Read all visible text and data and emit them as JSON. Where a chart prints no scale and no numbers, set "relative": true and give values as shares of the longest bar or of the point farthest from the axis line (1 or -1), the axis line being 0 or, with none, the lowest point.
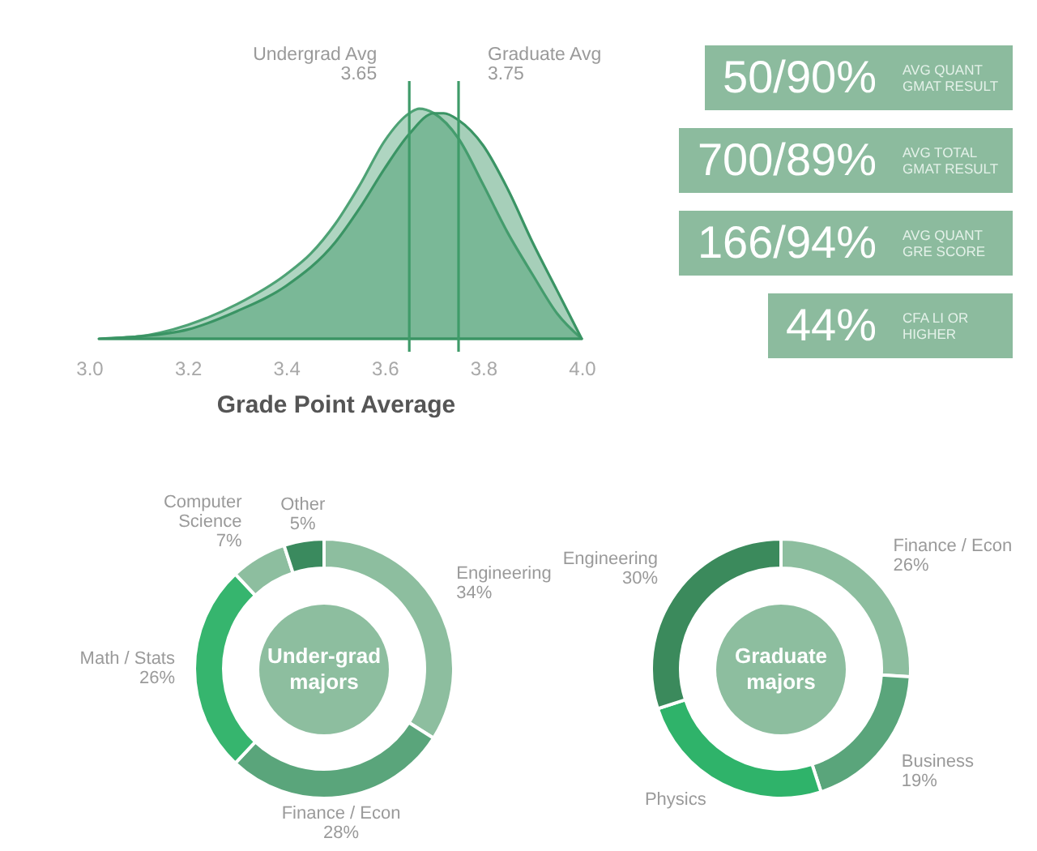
{
  "chart_data": [
    {
      "type": "area",
      "relative": true,
      "xlabel": "Grade Point Average",
      "xlim": [
        3,
        4
      ],
      "xticks": [
        {
          "value": 3,
          "label": "3.0"
        },
        3.2,
        3.4,
        3.6,
        3.8,
        {
          "value": 4,
          "label": "4.0"
        }
      ],
      "series": [
        {
          "color": "#4ea275",
          "x": [
            3.02,
            3.1,
            3.2,
            3.3,
            3.4,
            3.45,
            3.5,
            3.55,
            3.6,
            3.65,
            3.67,
            3.7,
            3.75,
            3.8,
            3.85,
            3.9,
            3.95,
            4.0
          ],
          "values": [
            0,
            0.01,
            0.06,
            0.15,
            0.28,
            0.37,
            0.5,
            0.67,
            0.86,
            0.98,
            1,
            0.98,
            0.87,
            0.67,
            0.46,
            0.28,
            0.11,
            0
          ]
        },
        {
          "color": "#3a9464",
          "x": [
            3.02,
            3.1,
            3.2,
            3.3,
            3.4,
            3.5,
            3.55,
            3.6,
            3.65,
            3.7,
            3.72,
            3.75,
            3.8,
            3.85,
            3.9,
            3.95,
            4.0
          ],
          "values": [
            0,
            0.01,
            0.04,
            0.12,
            0.23,
            0.42,
            0.57,
            0.74,
            0.89,
            0.98,
            0.98,
            0.95,
            0.84,
            0.65,
            0.42,
            0.21,
            0
          ]
        }
      ],
      "ref_lines": [
        {
          "axis": "x",
          "value": 3.65,
          "label": "Undergrad Avg 3.65",
          "color": "#3f9b69"
        },
        {
          "axis": "x",
          "value": 3.75,
          "label": "Graduate Avg 3.75",
          "color": "#3f9b69"
        }
      ]
    },
    {
      "type": "other",
      "annotations": [
        "50/90%",
        "AVG QUANT GMAT RESULT",
        "700/89%",
        "AVG TOTAL GMAT RESULT",
        "166/94%",
        "AVG QUANT GRE SCORE",
        "44%",
        "CFA LI OR HIGHER"
      ]
    },
    {
      "type": "donut",
      "title": "Under-grad majors",
      "categories": [
        "Engineering",
        "Finance / Econ",
        "Math / Stats",
        "Computer Science",
        "Other"
      ],
      "values": [
        34,
        28,
        26,
        7,
        5
      ],
      "colors": [
        "#8dbe9f",
        "#5aa57b",
        "#36b56e",
        "#8dbe9f",
        "#3a8a5e"
      ],
      "value_labels": [
        "34%",
        "28%",
        "26%",
        "7%",
        "5%"
      ]
    },
    {
      "type": "donut",
      "title": "Graduate majors",
      "categories": [
        "Finance / Econ",
        "Business",
        "Physics",
        "Engineering"
      ],
      "values": [
        26,
        19,
        25,
        30
      ],
      "colors": [
        "#8dbe9f",
        "#5aa57b",
        "#2fb36a",
        "#3b8a5c"
      ],
      "value_labels": [
        "26%",
        "19%",
        null,
        "30%"
      ]
    }
  ]
}
